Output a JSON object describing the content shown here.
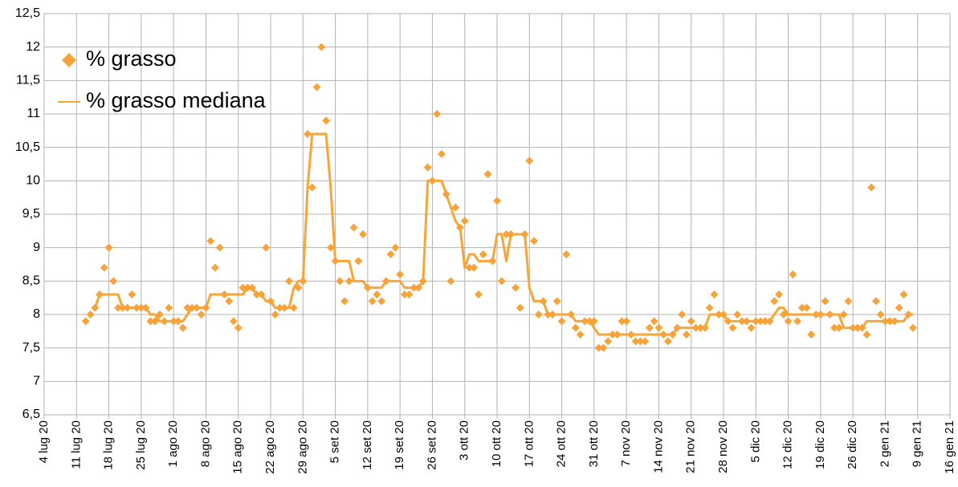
{
  "chart_data": {
    "type": "scatter",
    "x": [
      "2020-07-13",
      "2020-07-14",
      "2020-07-15",
      "2020-07-16",
      "2020-07-17",
      "2020-07-18",
      "2020-07-19",
      "2020-07-20",
      "2020-07-21",
      "2020-07-22",
      "2020-07-23",
      "2020-07-24",
      "2020-07-25",
      "2020-07-26",
      "2020-07-27",
      "2020-07-28",
      "2020-07-29",
      "2020-07-30",
      "2020-07-31",
      "2020-08-01",
      "2020-08-02",
      "2020-08-03",
      "2020-08-04",
      "2020-08-05",
      "2020-08-06",
      "2020-08-07",
      "2020-08-08",
      "2020-08-09",
      "2020-08-10",
      "2020-08-11",
      "2020-08-12",
      "2020-08-13",
      "2020-08-14",
      "2020-08-15",
      "2020-08-16",
      "2020-08-17",
      "2020-08-18",
      "2020-08-19",
      "2020-08-20",
      "2020-08-21",
      "2020-08-22",
      "2020-08-23",
      "2020-08-24",
      "2020-08-25",
      "2020-08-26",
      "2020-08-27",
      "2020-08-28",
      "2020-08-29",
      "2020-08-30",
      "2020-08-31",
      "2020-09-01",
      "2020-09-02",
      "2020-09-03",
      "2020-09-04",
      "2020-09-05",
      "2020-09-06",
      "2020-09-07",
      "2020-09-08",
      "2020-09-09",
      "2020-09-10",
      "2020-09-11",
      "2020-09-12",
      "2020-09-13",
      "2020-09-14",
      "2020-09-15",
      "2020-09-16",
      "2020-09-17",
      "2020-09-18",
      "2020-09-19",
      "2020-09-20",
      "2020-09-21",
      "2020-09-22",
      "2020-09-23",
      "2020-09-24",
      "2020-09-25",
      "2020-09-26",
      "2020-09-27",
      "2020-09-28",
      "2020-09-29",
      "2020-09-30",
      "2020-10-01",
      "2020-10-02",
      "2020-10-03",
      "2020-10-04",
      "2020-10-05",
      "2020-10-06",
      "2020-10-07",
      "2020-10-08",
      "2020-10-09",
      "2020-10-10",
      "2020-10-11",
      "2020-10-12",
      "2020-10-13",
      "2020-10-14",
      "2020-10-15",
      "2020-10-16",
      "2020-10-17",
      "2020-10-18",
      "2020-10-19",
      "2020-10-20",
      "2020-10-21",
      "2020-10-22",
      "2020-10-23",
      "2020-10-24",
      "2020-10-25",
      "2020-10-26",
      "2020-10-27",
      "2020-10-28",
      "2020-10-29",
      "2020-10-30",
      "2020-10-31",
      "2020-11-01",
      "2020-11-02",
      "2020-11-03",
      "2020-11-04",
      "2020-11-05",
      "2020-11-06",
      "2020-11-07",
      "2020-11-08",
      "2020-11-09",
      "2020-11-10",
      "2020-11-11",
      "2020-11-12",
      "2020-11-13",
      "2020-11-14",
      "2020-11-15",
      "2020-11-16",
      "2020-11-17",
      "2020-11-18",
      "2020-11-19",
      "2020-11-20",
      "2020-11-21",
      "2020-11-22",
      "2020-11-23",
      "2020-11-24",
      "2020-11-25",
      "2020-11-26",
      "2020-11-27",
      "2020-11-28",
      "2020-11-29",
      "2020-11-30",
      "2020-12-01",
      "2020-12-02",
      "2020-12-03",
      "2020-12-04",
      "2020-12-05",
      "2020-12-06",
      "2020-12-07",
      "2020-12-08",
      "2020-12-09",
      "2020-12-10",
      "2020-12-11",
      "2020-12-12",
      "2020-12-13",
      "2020-12-14",
      "2020-12-15",
      "2020-12-16",
      "2020-12-17",
      "2020-12-18",
      "2020-12-19",
      "2020-12-20",
      "2020-12-21",
      "2020-12-22",
      "2020-12-23",
      "2020-12-24",
      "2020-12-25",
      "2020-12-26",
      "2020-12-27",
      "2020-12-28",
      "2020-12-29",
      "2020-12-30",
      "2020-12-31",
      "2021-01-01",
      "2021-01-02",
      "2021-01-03",
      "2021-01-04",
      "2021-01-05",
      "2021-01-06",
      "2021-01-07",
      "2021-01-08"
    ],
    "series": [
      {
        "name": "% grasso",
        "type": "scatter",
        "marker": "diamond",
        "color": "#f5a33a",
        "values": [
          7.9,
          8.0,
          8.1,
          8.3,
          8.7,
          9.0,
          8.5,
          8.1,
          8.1,
          8.1,
          8.3,
          8.1,
          8.1,
          8.1,
          7.9,
          7.9,
          8.0,
          7.9,
          8.1,
          7.9,
          7.9,
          7.8,
          8.1,
          8.1,
          8.1,
          8.0,
          8.1,
          9.1,
          8.7,
          9.0,
          8.3,
          8.2,
          7.9,
          7.8,
          8.4,
          8.4,
          8.4,
          8.3,
          8.3,
          9.0,
          8.2,
          8.0,
          8.1,
          8.1,
          8.5,
          8.1,
          8.4,
          8.5,
          10.7,
          9.9,
          11.4,
          12.0,
          10.9,
          9.0,
          8.8,
          8.5,
          8.2,
          8.5,
          9.3,
          8.8,
          9.2,
          8.4,
          8.2,
          8.3,
          8.2,
          8.5,
          8.9,
          9.0,
          8.6,
          8.3,
          8.3,
          8.4,
          8.4,
          8.5,
          10.2,
          10.0,
          11.0,
          10.4,
          9.8,
          8.5,
          9.6,
          9.3,
          9.4,
          8.7,
          8.7,
          8.3,
          8.9,
          10.1,
          8.8,
          9.7,
          8.5,
          9.2,
          9.2,
          8.4,
          8.1,
          9.2,
          10.3,
          9.1,
          8.0,
          8.2,
          8.0,
          8.0,
          8.2,
          7.9,
          8.9,
          8.0,
          7.8,
          7.7,
          7.9,
          7.9,
          7.9,
          7.5,
          7.5,
          7.6,
          7.7,
          7.7,
          7.9,
          7.9,
          7.7,
          7.6,
          7.6,
          7.6,
          7.8,
          7.9,
          7.8,
          7.7,
          7.6,
          7.7,
          7.8,
          8.0,
          7.7,
          7.9,
          7.8,
          7.8,
          7.8,
          8.1,
          8.3,
          8.0,
          8.0,
          7.9,
          7.8,
          8.0,
          7.9,
          7.9,
          7.8,
          7.9,
          7.9,
          7.9,
          7.9,
          8.2,
          8.3,
          8.0,
          7.9,
          8.6,
          7.9,
          8.1,
          8.1,
          7.7,
          8.0,
          8.0,
          8.2,
          8.0,
          7.8,
          7.8,
          8.0,
          8.2,
          7.8,
          7.8,
          7.8,
          7.7,
          9.9,
          8.2,
          8.0,
          7.9,
          7.9,
          7.9,
          8.1,
          8.3,
          8.0,
          7.8
        ]
      },
      {
        "name": "% grasso mediana",
        "type": "line",
        "color": "#f7a535",
        "values": [
          null,
          null,
          8.1,
          8.3,
          8.3,
          8.3,
          8.3,
          8.3,
          8.1,
          8.1,
          8.1,
          8.1,
          8.1,
          8.1,
          8.0,
          8.0,
          7.9,
          7.9,
          7.9,
          7.9,
          7.9,
          7.9,
          8.0,
          8.1,
          8.1,
          8.1,
          8.1,
          8.3,
          8.3,
          8.3,
          8.3,
          8.3,
          8.3,
          8.3,
          8.3,
          8.4,
          8.4,
          8.3,
          8.3,
          8.2,
          8.2,
          8.1,
          8.1,
          8.1,
          8.1,
          8.4,
          8.5,
          8.5,
          9.9,
          10.7,
          10.7,
          10.7,
          10.7,
          9.9,
          8.8,
          8.8,
          8.8,
          8.8,
          8.5,
          8.5,
          8.5,
          8.4,
          8.4,
          8.4,
          8.4,
          8.5,
          8.5,
          8.5,
          8.5,
          8.4,
          8.4,
          8.4,
          8.4,
          8.5,
          10.0,
          10.0,
          10.0,
          10.0,
          9.8,
          9.6,
          9.4,
          9.3,
          8.7,
          8.9,
          8.9,
          8.8,
          8.8,
          8.8,
          8.8,
          9.2,
          9.2,
          8.8,
          9.2,
          9.2,
          9.2,
          9.2,
          8.4,
          8.2,
          8.2,
          8.2,
          8.0,
          8.0,
          8.0,
          8.0,
          8.0,
          8.0,
          7.9,
          7.9,
          7.9,
          7.9,
          7.8,
          7.7,
          7.7,
          7.7,
          7.7,
          7.7,
          7.7,
          7.7,
          7.7,
          7.7,
          7.7,
          7.7,
          7.7,
          7.7,
          7.7,
          7.7,
          7.7,
          7.7,
          7.8,
          7.8,
          7.8,
          7.8,
          7.8,
          7.8,
          7.8,
          8.0,
          8.0,
          8.0,
          8.0,
          7.9,
          7.9,
          7.9,
          7.9,
          7.9,
          7.9,
          7.9,
          7.9,
          7.9,
          7.9,
          8.0,
          8.1,
          8.1,
          8.0,
          8.0,
          8.0,
          8.0,
          8.0,
          8.0,
          8.0,
          8.0,
          8.0,
          8.0,
          8.0,
          8.0,
          7.8,
          7.8,
          7.8,
          7.8,
          7.8,
          7.9,
          7.9,
          7.9,
          7.9,
          7.9,
          7.9,
          7.9,
          7.9,
          7.9,
          8.0,
          8.0
        ]
      }
    ],
    "xlim": [
      "2020-07-04",
      "2021-01-16"
    ],
    "xticks": [
      {
        "value": "2020-07-04",
        "label": "4 lug 20"
      },
      {
        "value": "2020-07-11",
        "label": "11 lug 20"
      },
      {
        "value": "2020-07-18",
        "label": "18 lug 20"
      },
      {
        "value": "2020-07-25",
        "label": "25 lug 20"
      },
      {
        "value": "2020-08-01",
        "label": "1 ago 20"
      },
      {
        "value": "2020-08-08",
        "label": "8 ago 20"
      },
      {
        "value": "2020-08-15",
        "label": "15 ago 20"
      },
      {
        "value": "2020-08-22",
        "label": "22 ago 20"
      },
      {
        "value": "2020-08-29",
        "label": "29 ago 20"
      },
      {
        "value": "2020-09-05",
        "label": "5 set 20"
      },
      {
        "value": "2020-09-12",
        "label": "12 set 20"
      },
      {
        "value": "2020-09-19",
        "label": "19 set 20"
      },
      {
        "value": "2020-09-26",
        "label": "26 set 20"
      },
      {
        "value": "2020-10-03",
        "label": "3 ott 20"
      },
      {
        "value": "2020-10-10",
        "label": "10 ott 20"
      },
      {
        "value": "2020-10-17",
        "label": "17 ott 20"
      },
      {
        "value": "2020-10-24",
        "label": "24 ott 20"
      },
      {
        "value": "2020-10-31",
        "label": "31 ott 20"
      },
      {
        "value": "2020-11-07",
        "label": "7 nov 20"
      },
      {
        "value": "2020-11-14",
        "label": "14 nov 20"
      },
      {
        "value": "2020-11-21",
        "label": "21 nov 20"
      },
      {
        "value": "2020-11-28",
        "label": "28 nov 20"
      },
      {
        "value": "2020-12-05",
        "label": "5 dic 20"
      },
      {
        "value": "2020-12-12",
        "label": "12 dic 20"
      },
      {
        "value": "2020-12-19",
        "label": "19 dic 20"
      },
      {
        "value": "2020-12-26",
        "label": "26 dic 20"
      },
      {
        "value": "2021-01-02",
        "label": "2 gen 21"
      },
      {
        "value": "2021-01-09",
        "label": "9 gen 21"
      },
      {
        "value": "2021-01-16",
        "label": "16 gen 21"
      }
    ],
    "ylim": [
      6.5,
      12.5
    ],
    "yticks": [
      {
        "value": 6.5,
        "label": "6,5"
      },
      7,
      {
        "value": 7.5,
        "label": "7,5"
      },
      8,
      {
        "value": 8.5,
        "label": "8,5"
      },
      9,
      {
        "value": 9.5,
        "label": "9,5"
      },
      10,
      {
        "value": 10.5,
        "label": "10,5"
      },
      11,
      {
        "value": 11.5,
        "label": "11,5"
      },
      12,
      {
        "value": 12.5,
        "label": "12,5"
      }
    ],
    "grid": true,
    "legend": "upper left"
  }
}
